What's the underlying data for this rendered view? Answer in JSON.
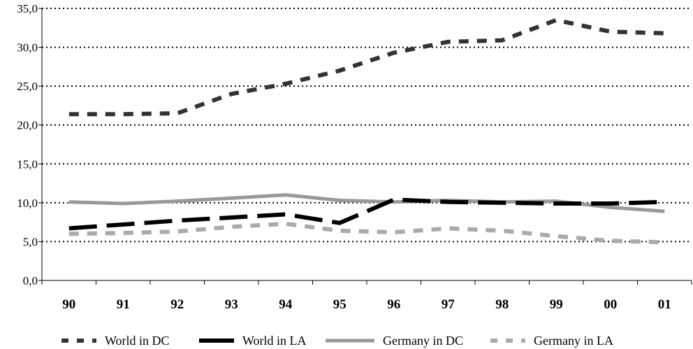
{
  "chart_data": {
    "type": "line",
    "categories": [
      "90",
      "91",
      "92",
      "93",
      "94",
      "95",
      "96",
      "97",
      "98",
      "99",
      "00",
      "01"
    ],
    "ylim": [
      0,
      35
    ],
    "yticks": [
      "0,0",
      "5,0",
      "10,0",
      "15,0",
      "20,0",
      "25,0",
      "30,0",
      "35,0"
    ],
    "grid": true,
    "legend_position": "bottom",
    "series": [
      {
        "name": "World in DC",
        "color": "#333333",
        "style": "dashed",
        "values": [
          21.4,
          21.4,
          21.5,
          24.0,
          25.3,
          27.0,
          29.3,
          30.7,
          30.9,
          33.5,
          32.0,
          31.8
        ]
      },
      {
        "name": "World in LA",
        "color": "#000000",
        "style": "long-dash",
        "values": [
          6.7,
          7.2,
          7.7,
          8.1,
          8.5,
          7.4,
          10.4,
          10.1,
          10.0,
          9.9,
          9.9,
          10.1
        ]
      },
      {
        "name": "Germany in DC",
        "color": "#999999",
        "style": "solid",
        "values": [
          10.1,
          9.9,
          10.2,
          10.6,
          11.0,
          10.3,
          10.1,
          10.3,
          10.1,
          10.2,
          9.4,
          8.9
        ]
      },
      {
        "name": "Germany in LA",
        "color": "#aaaaaa",
        "style": "dashed",
        "values": [
          6.0,
          6.1,
          6.3,
          6.9,
          7.3,
          6.4,
          6.2,
          6.7,
          6.4,
          5.7,
          5.1,
          4.9
        ]
      }
    ]
  }
}
